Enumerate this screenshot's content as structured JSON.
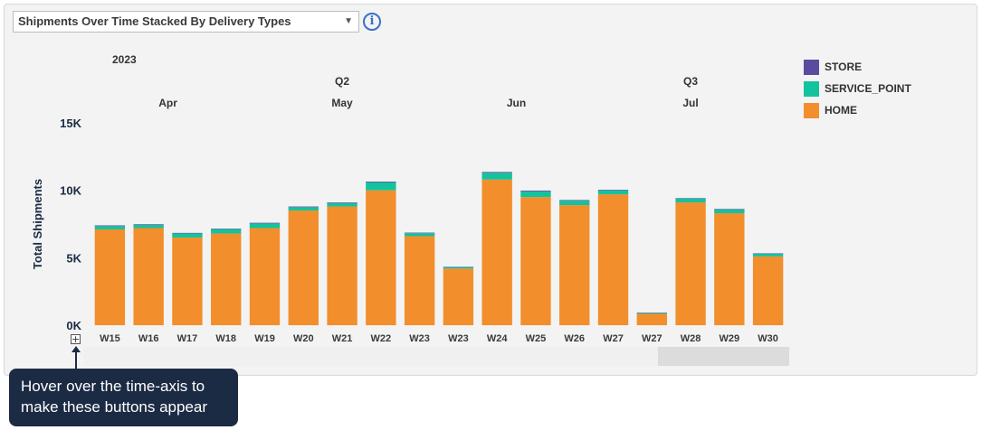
{
  "selector": {
    "value": "Shipments Over Time Stacked By Delivery Types"
  },
  "icons": {
    "info": "info-icon",
    "dropdown": "chevron-down-icon",
    "expand": "plus-icon"
  },
  "tooltip": {
    "text": "Hover over the time-axis to make these buttons appear"
  },
  "chart_data": {
    "type": "bar",
    "stacked": true,
    "ylabel": "Total Shipments",
    "ylim": [
      0,
      15000
    ],
    "yticks": [
      0,
      5000,
      10000,
      15000
    ],
    "ytick_labels": [
      "0K",
      "5K",
      "10K",
      "15K"
    ],
    "categories": [
      "W15",
      "W16",
      "W17",
      "W18",
      "W19",
      "W20",
      "W21",
      "W22",
      "W23",
      "W23",
      "W24",
      "W25",
      "W26",
      "W27",
      "W27",
      "W28",
      "W29",
      "W30"
    ],
    "hierarchy": {
      "year": [
        {
          "label": "2023",
          "start": 0
        }
      ],
      "quarter": [
        {
          "label": "Q2",
          "start": 0,
          "end": 12
        },
        {
          "label": "Q3",
          "start": 13,
          "end": 17
        }
      ],
      "month": [
        {
          "label": "Apr",
          "start": 0,
          "end": 3
        },
        {
          "label": "May",
          "start": 4,
          "end": 8
        },
        {
          "label": "Jun",
          "start": 9,
          "end": 12
        },
        {
          "label": "Jul",
          "start": 13,
          "end": 17
        }
      ]
    },
    "series": [
      {
        "name": "HOME",
        "color": "#f28e2c",
        "values": [
          7100,
          7200,
          6500,
          6800,
          7200,
          8500,
          8800,
          10000,
          6600,
          4200,
          10800,
          9500,
          8900,
          9700,
          850,
          9100,
          8300,
          5100
        ]
      },
      {
        "name": "SERVICE_POINT",
        "color": "#13c39d",
        "values": [
          250,
          230,
          300,
          320,
          340,
          250,
          250,
          580,
          220,
          100,
          500,
          420,
          330,
          290,
          60,
          280,
          280,
          200
        ]
      },
      {
        "name": "STORE",
        "color": "#5b4b9e",
        "values": [
          50,
          50,
          40,
          40,
          50,
          50,
          50,
          60,
          40,
          30,
          60,
          60,
          50,
          50,
          20,
          40,
          40,
          30
        ]
      }
    ],
    "legend": {
      "position": "right",
      "order": [
        "STORE",
        "SERVICE_POINT",
        "HOME"
      ]
    },
    "grid": false
  }
}
